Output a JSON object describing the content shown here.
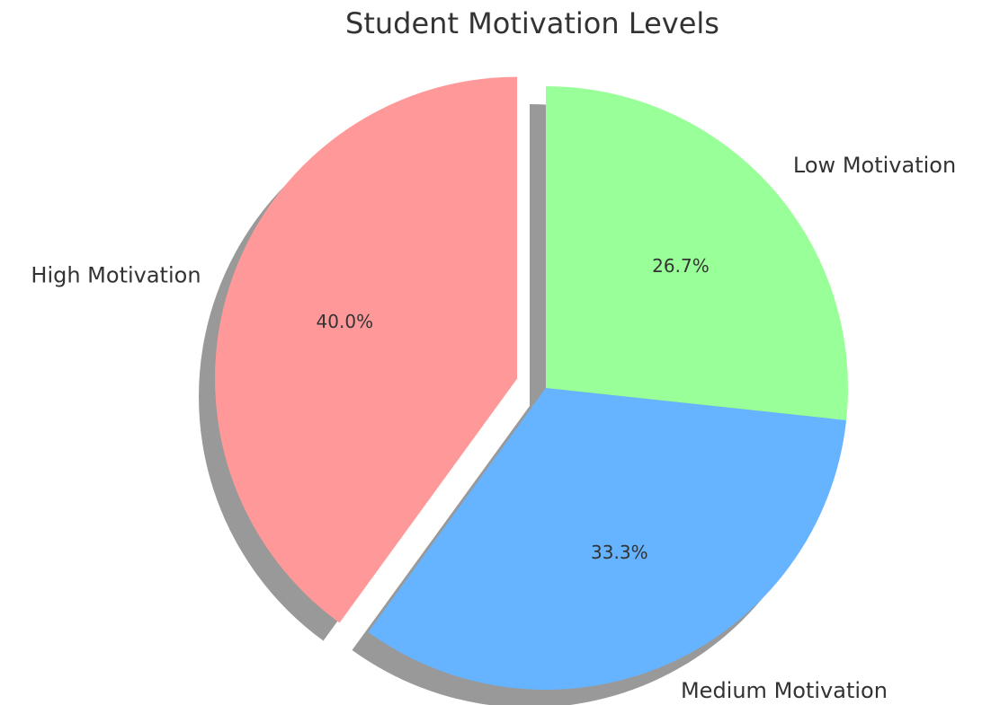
{
  "chart_data": {
    "type": "pie",
    "title": "Student Motivation Levels",
    "categories": [
      "High Motivation",
      "Medium Motivation",
      "Low Motivation"
    ],
    "values": [
      40.0,
      33.3,
      26.7
    ],
    "value_labels": [
      "40.0%",
      "33.3%",
      "26.7%"
    ],
    "colors": [
      "#ff9999",
      "#66b3ff",
      "#99ff99"
    ],
    "shadow": true
  }
}
